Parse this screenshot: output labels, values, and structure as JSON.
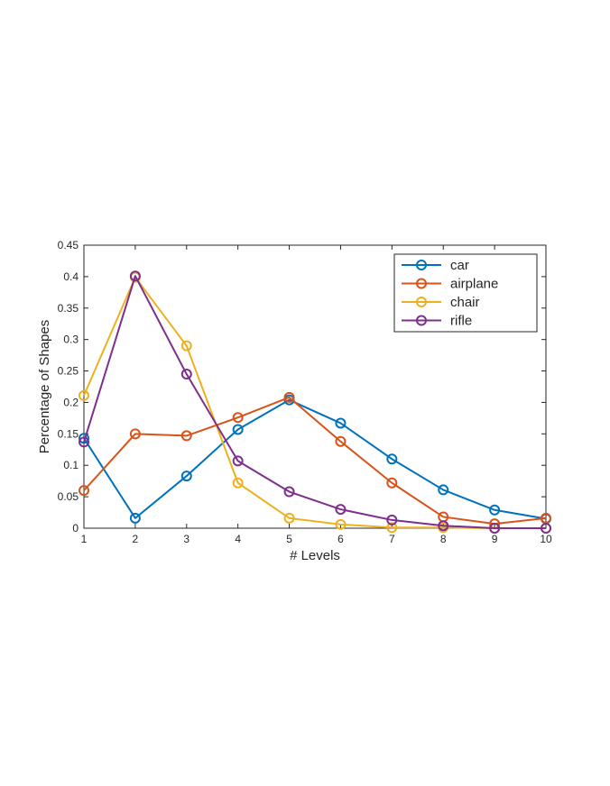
{
  "chart_data": {
    "type": "line",
    "title": "",
    "xlabel": "# Levels",
    "ylabel": "Percentage of Shapes",
    "x": [
      1,
      2,
      3,
      4,
      5,
      6,
      7,
      8,
      9,
      10
    ],
    "xlim": [
      1,
      10
    ],
    "ylim": [
      0,
      0.45
    ],
    "xticks": [
      "1",
      "2",
      "3",
      "4",
      "5",
      "6",
      "7",
      "8",
      "9",
      "10"
    ],
    "yticks": [
      "0",
      "0.05",
      "0.1",
      "0.15",
      "0.2",
      "0.25",
      "0.3",
      "0.35",
      "0.4",
      "0.45"
    ],
    "grid": false,
    "legend_position": "top-right",
    "marker": "circle",
    "series": [
      {
        "name": "car",
        "color": "#0072BD",
        "values": [
          0.143,
          0.016,
          0.083,
          0.157,
          0.204,
          0.167,
          0.11,
          0.061,
          0.029,
          0.015
        ]
      },
      {
        "name": "airplane",
        "color": "#D95319",
        "values": [
          0.06,
          0.15,
          0.147,
          0.176,
          0.208,
          0.138,
          0.072,
          0.018,
          0.007,
          0.016
        ]
      },
      {
        "name": "chair",
        "color": "#EDB120",
        "values": [
          0.211,
          0.399,
          0.29,
          0.072,
          0.016,
          0.006,
          0.001,
          0.001,
          0.0,
          0.0
        ]
      },
      {
        "name": "rifle",
        "color": "#7E2F8E",
        "values": [
          0.137,
          0.401,
          0.245,
          0.107,
          0.058,
          0.03,
          0.013,
          0.004,
          0.0,
          0.0
        ]
      }
    ]
  }
}
